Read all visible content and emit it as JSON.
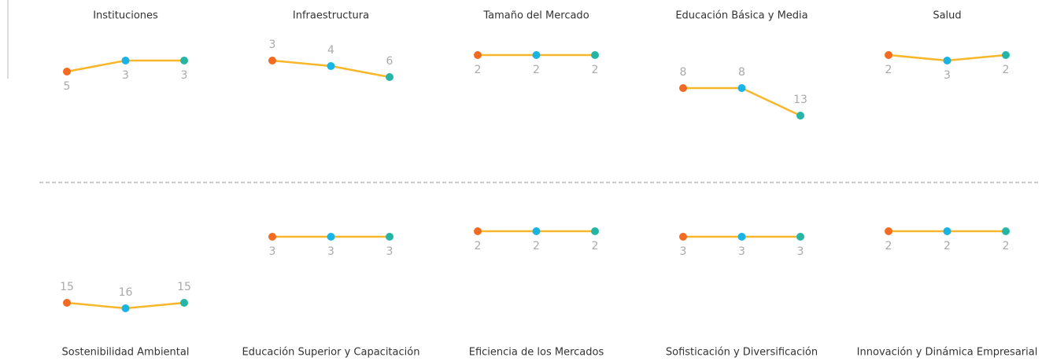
{
  "chart_data": [
    {
      "type": "line",
      "title": "Instituciones",
      "values": [
        5,
        3,
        3
      ],
      "color": "#f8b72a",
      "point_colors": [
        "#f26b21",
        "#1ab3e6",
        "#26b5a5"
      ],
      "ylim": [
        1,
        20
      ],
      "y_inverted": true,
      "label_position": "below"
    },
    {
      "type": "line",
      "title": "Infraestructura",
      "values": [
        3,
        4,
        6
      ],
      "color": "#f8b72a",
      "point_colors": [
        "#f26b21",
        "#1ab3e6",
        "#26b5a5"
      ],
      "ylim": [
        1,
        20
      ],
      "y_inverted": true,
      "label_position": "above"
    },
    {
      "type": "line",
      "title": "Tamaño del Mercado",
      "values": [
        2,
        2,
        2
      ],
      "color": "#f8b72a",
      "point_colors": [
        "#f26b21",
        "#1ab3e6",
        "#26b5a5"
      ],
      "ylim": [
        1,
        20
      ],
      "y_inverted": true,
      "label_position": "below"
    },
    {
      "type": "line",
      "title": "Educación Básica y Media",
      "values": [
        8,
        8,
        13
      ],
      "color": "#f8b72a",
      "point_colors": [
        "#f26b21",
        "#1ab3e6",
        "#26b5a5"
      ],
      "ylim": [
        1,
        20
      ],
      "y_inverted": true,
      "label_position": "above"
    },
    {
      "type": "line",
      "title": "Salud",
      "values": [
        2,
        3,
        2
      ],
      "color": "#f8b72a",
      "point_colors": [
        "#f26b21",
        "#1ab3e6",
        "#26b5a5"
      ],
      "ylim": [
        1,
        20
      ],
      "y_inverted": true,
      "label_position": "below"
    },
    {
      "type": "line",
      "title": "Sostenibilidad Ambiental",
      "values": [
        15,
        16,
        15
      ],
      "color": "#f8b72a",
      "point_colors": [
        "#f26b21",
        "#1ab3e6",
        "#26b5a5"
      ],
      "ylim": [
        1,
        20
      ],
      "y_inverted": true,
      "label_position": "above"
    },
    {
      "type": "line",
      "title": "Educación Superior y Capacitación",
      "values": [
        3,
        3,
        3
      ],
      "color": "#f8b72a",
      "point_colors": [
        "#f26b21",
        "#1ab3e6",
        "#26b5a5"
      ],
      "ylim": [
        1,
        20
      ],
      "y_inverted": true,
      "label_position": "below"
    },
    {
      "type": "line",
      "title": "Eficiencia de los Mercados",
      "values": [
        2,
        2,
        2
      ],
      "color": "#f8b72a",
      "point_colors": [
        "#f26b21",
        "#1ab3e6",
        "#26b5a5"
      ],
      "ylim": [
        1,
        20
      ],
      "y_inverted": true,
      "label_position": "below"
    },
    {
      "type": "line",
      "title": "Sofisticación y Diversificación",
      "values": [
        3,
        3,
        3
      ],
      "color": "#f8b72a",
      "point_colors": [
        "#f26b21",
        "#1ab3e6",
        "#26b5a5"
      ],
      "ylim": [
        1,
        20
      ],
      "y_inverted": true,
      "label_position": "below"
    },
    {
      "type": "line",
      "title": "Innovación y Dinámica Empresarial",
      "values": [
        2,
        2,
        2
      ],
      "color": "#f8b72a",
      "point_colors": [
        "#f26b21",
        "#1ab3e6",
        "#26b5a5"
      ],
      "ylim": [
        1,
        20
      ],
      "y_inverted": true,
      "label_position": "below"
    }
  ]
}
